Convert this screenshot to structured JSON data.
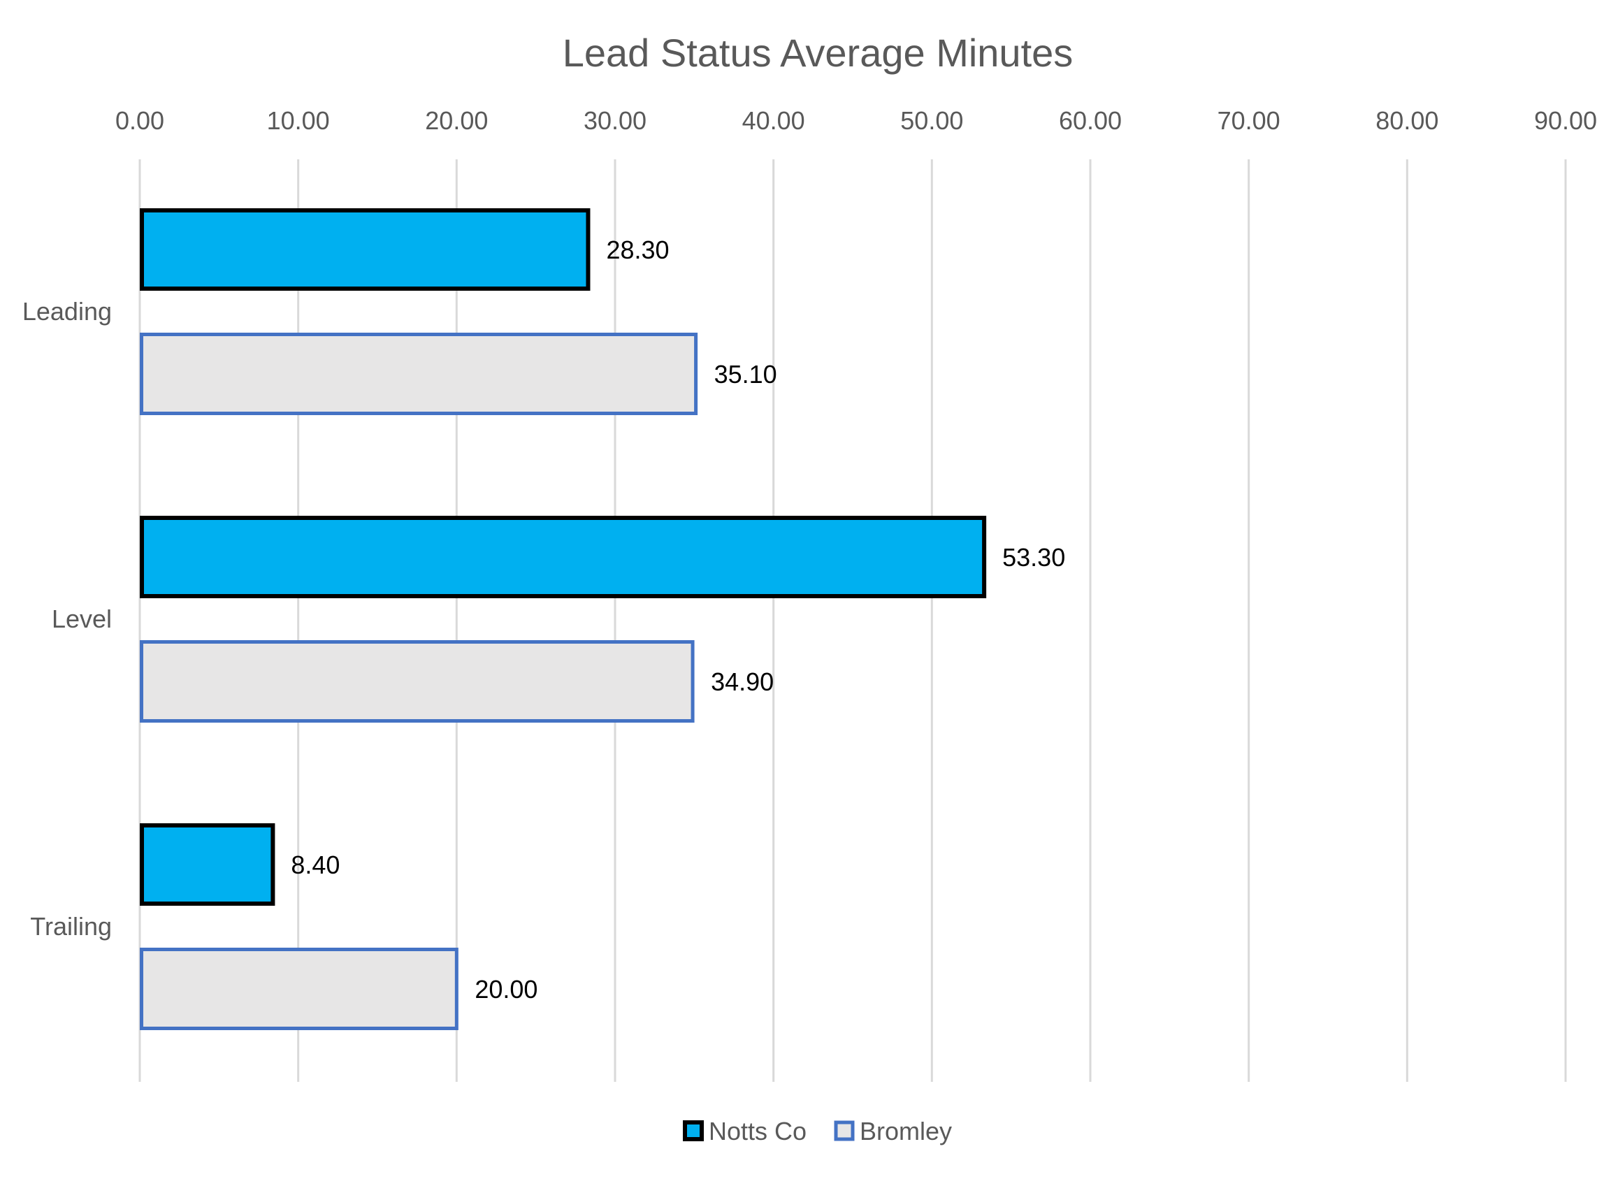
{
  "chart_data": {
    "type": "bar",
    "orientation": "horizontal",
    "title": "Lead Status Average Minutes",
    "categories": [
      "Leading",
      "Level",
      "Trailing"
    ],
    "series": [
      {
        "name": "Notts Co",
        "values": [
          28.3,
          53.3,
          8.4
        ],
        "labels": [
          "28.30",
          "53.30",
          "8.40"
        ],
        "fill": "#00b0f0",
        "stroke": "#000000"
      },
      {
        "name": "Bromley",
        "values": [
          35.1,
          34.9,
          20.0
        ],
        "labels": [
          "35.10",
          "34.90",
          "20.00"
        ],
        "fill": "#e7e6e6",
        "stroke": "#4472c4"
      }
    ],
    "xlim": [
      0,
      90
    ],
    "xticks": [
      "0.00",
      "10.00",
      "20.00",
      "30.00",
      "40.00",
      "50.00",
      "60.00",
      "70.00",
      "80.00",
      "90.00"
    ],
    "x_axis_position": "top",
    "grid": true,
    "legend": "bottom"
  }
}
